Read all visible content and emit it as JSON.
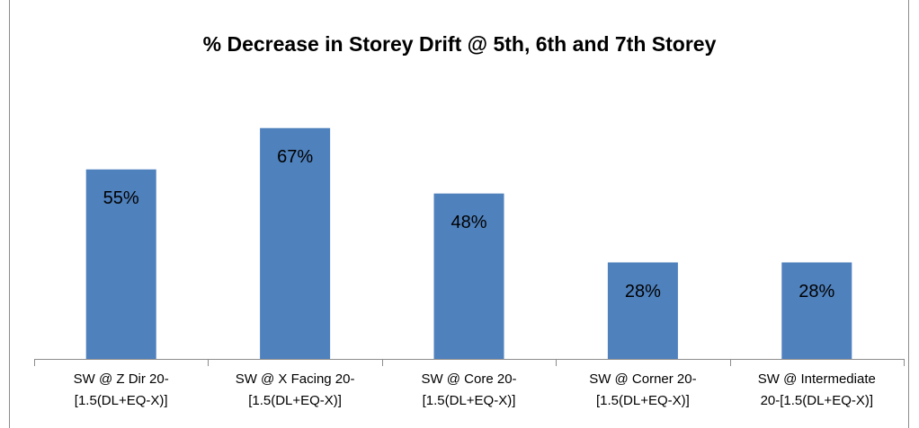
{
  "chart_data": {
    "type": "bar",
    "title": "% Decrease in Storey Drift @ 5th, 6th and 7th Storey",
    "categories": [
      "SW @ Z Dir 20-\n[1.5(DL+EQ-X)]",
      "SW @ X Facing 20-\n[1.5(DL+EQ-X)]",
      "SW @ Core 20-\n[1.5(DL+EQ-X)]",
      "SW @ Corner 20-\n[1.5(DL+EQ-X)]",
      "SW @ Intermediate\n20-[1.5(DL+EQ-X)]"
    ],
    "values": [
      55,
      67,
      48,
      28,
      28
    ],
    "value_labels": [
      "55%",
      "67%",
      "48%",
      "28%",
      "28%"
    ],
    "color": "#4f81bd"
  }
}
